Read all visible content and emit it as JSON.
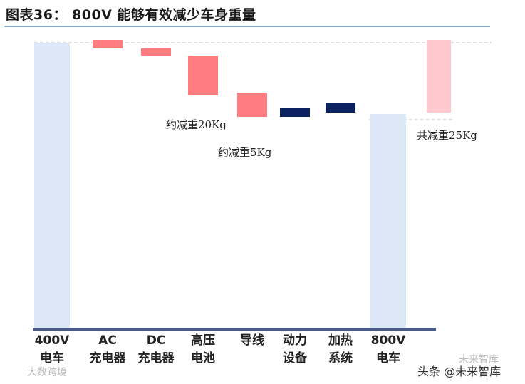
{
  "title": "图表36：  800V 能够有效减少车身重量",
  "chart_data": {
    "type": "bar",
    "subtype": "waterfall",
    "title": "图表36：  800V 能够有效减少车身重量",
    "categories": [
      "400V\n电车",
      "AC\n充电器",
      "DC\n充电器",
      "高压\n电池",
      "导线",
      "动力\n设备",
      "加热\n系统",
      "800V\n电车"
    ],
    "bars": [
      {
        "category": "400V\n电车",
        "kind": "total",
        "bottom": 0,
        "top": 100
      },
      {
        "category": "AC\n充电器",
        "kind": "decrease",
        "bottom": 98.0,
        "top": 101.0
      },
      {
        "category": "DC\n充电器",
        "kind": "decrease",
        "bottom": 95.5,
        "top": 98.0
      },
      {
        "category": "高压\n电池",
        "kind": "decrease",
        "bottom": 81.5,
        "top": 95.5
      },
      {
        "category": "导线",
        "kind": "decrease",
        "bottom": 74.0,
        "top": 82.5
      },
      {
        "category": "动力\n设备",
        "kind": "decrease",
        "bottom": 74.0,
        "top": 77.0
      },
      {
        "category": "加热\n系统",
        "kind": "decrease",
        "bottom": 75.5,
        "top": 79.0
      },
      {
        "category": "800V\n电车",
        "kind": "total",
        "bottom": 0,
        "top": 75.0
      },
      {
        "category": "800V\n电车",
        "kind": "saving",
        "bottom": 75.5,
        "top": 101.0
      }
    ],
    "annotations": [
      "约减重20Kg",
      "约减重5Kg",
      "共减重25Kg"
    ],
    "ylim": [
      0,
      105
    ],
    "grid": false
  },
  "colors": {
    "total": "#dce8f5",
    "decrease": "#ff7c80",
    "dark": "#0b2260",
    "saving": "#ffc7ce",
    "axis": "#4a5a87",
    "guide": "#b8b8b8"
  },
  "watermarks": {
    "bottom_left": "大数跨境",
    "right_top": "未来智库",
    "right_bottom": "头条 @未来智库"
  }
}
